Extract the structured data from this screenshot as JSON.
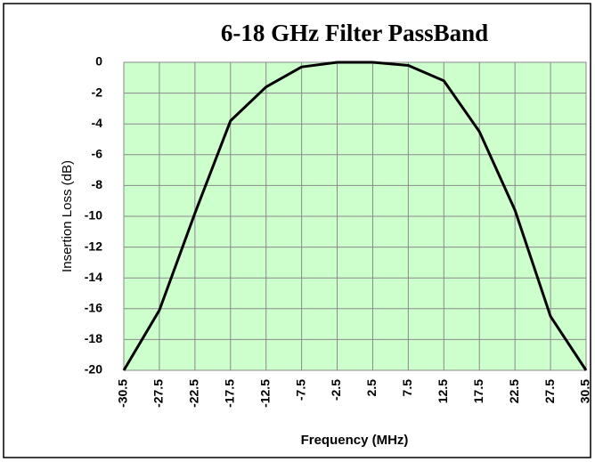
{
  "chart_data": {
    "type": "line",
    "title": "6-18 GHz Filter PassBand",
    "x_label": "Frequency (MHz)",
    "y_label": "Insertion Loss (dB)",
    "categories": [
      "-30.5",
      "-27.5",
      "-22.5",
      "-17.5",
      "-12.5",
      "-7.5",
      "-2.5",
      "2.5",
      "7.5",
      "12.5",
      "17.5",
      "22.5",
      "27.5",
      "30.5"
    ],
    "series": [
      {
        "name": "Insertion Loss",
        "color": "#000000",
        "values": [
          -20,
          -16.1,
          -9.8,
          -3.8,
          -1.6,
          -0.3,
          0,
          0,
          -0.2,
          -1.2,
          -4.5,
          -9.6,
          -16.5,
          -20
        ]
      }
    ],
    "ylim": [
      -20,
      0
    ],
    "yticks": [
      0,
      -2,
      -4,
      -6,
      -8,
      -10,
      -12,
      -14,
      -16,
      -18,
      -20
    ],
    "grid": true,
    "plot_background": "#ccffcc"
  }
}
